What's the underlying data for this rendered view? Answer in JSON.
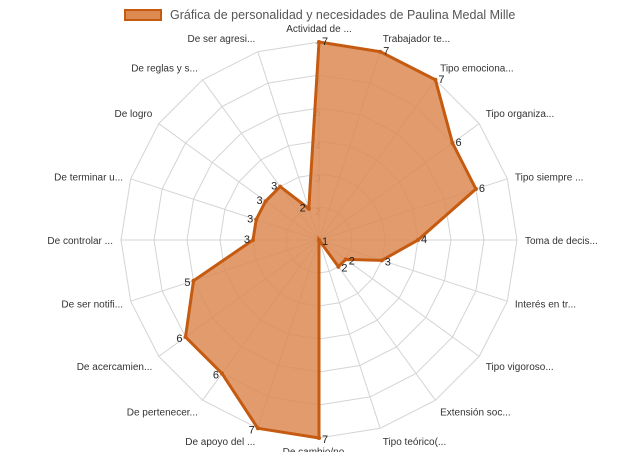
{
  "chart_data": {
    "type": "radar",
    "legend": "top",
    "grid": true,
    "rlim": [
      1,
      7
    ],
    "ticks": [
      2,
      3,
      4,
      5,
      6,
      7
    ],
    "colors": {
      "fill": "#dc8a52",
      "stroke": "#c55a11",
      "grid": "#d4d4d4"
    },
    "categories": [
      "Actividad de ...",
      "Trabajador te...",
      "Tipo emociona...",
      "Tipo organiza...",
      "Tipo siempre ...",
      "Toma de decis...",
      "Interés en tr...",
      "Tipo vigoroso...",
      "Extensión soc...",
      "Tipo teórico(...",
      "De cambio/no ...",
      "De apoyo del ...",
      "De pertenecer...",
      "De acercamien...",
      "De ser notifi...",
      "De controlar ...",
      "De terminar u...",
      "De logro",
      "De reglas y s...",
      "De ser agresi..."
    ],
    "series": [
      {
        "name": "Gráfica de personalidad y necesidades de Paulina Medal Mille",
        "values": [
          7,
          7,
          7,
          6,
          6,
          4,
          3,
          2,
          2,
          1,
          7,
          7,
          6,
          6,
          5,
          3,
          3,
          3,
          3,
          2
        ]
      }
    ]
  }
}
